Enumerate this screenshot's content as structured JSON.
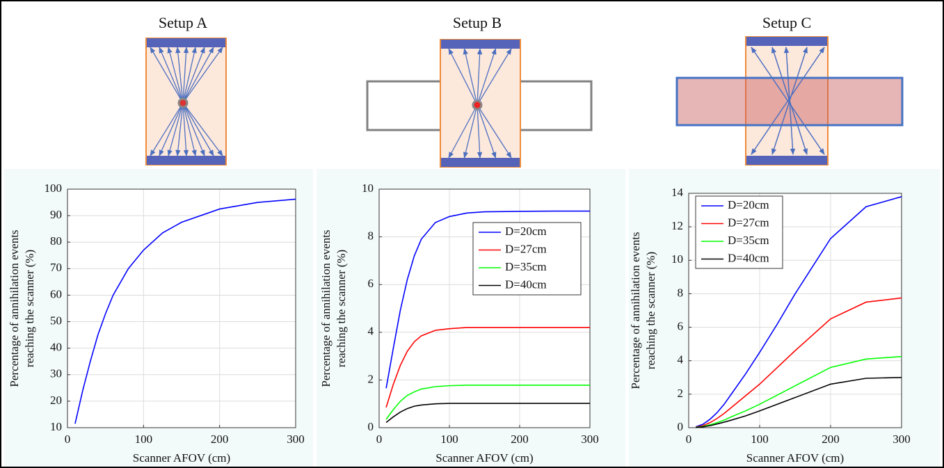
{
  "chart_data": [
    {
      "type": "line",
      "title": "Setup A",
      "xlabel": "Scanner AFOV (cm)",
      "ylabel": [
        "Percentage of annihilation events",
        "reaching the scanner (%)"
      ],
      "x": [
        10,
        20,
        30,
        40,
        50,
        60,
        80,
        100,
        125,
        150,
        200,
        250,
        300
      ],
      "series": [
        {
          "color": "#0000ff",
          "values": [
            11.5,
            24,
            35,
            45,
            53,
            60,
            70,
            77,
            83.5,
            87.5,
            92.5,
            95,
            96.2
          ]
        }
      ],
      "xlim": [
        0,
        300
      ],
      "xticks": [
        0,
        100,
        200,
        300
      ],
      "ylim": [
        10,
        100
      ],
      "yticks": [
        10,
        20,
        30,
        40,
        50,
        60,
        70,
        80,
        90,
        100
      ],
      "grid": true
    },
    {
      "type": "line",
      "title": "Setup B",
      "xlabel": "Scanner AFOV (cm)",
      "ylabel": [
        "Percentage of annihilation events",
        "reaching the scanner (%)"
      ],
      "x": [
        10,
        20,
        30,
        40,
        50,
        60,
        80,
        100,
        125,
        150,
        200,
        250,
        300
      ],
      "series": [
        {
          "name": "D=20cm",
          "color": "#0000ff",
          "values": [
            1.65,
            3.3,
            4.9,
            6.2,
            7.2,
            7.9,
            8.6,
            8.85,
            9.0,
            9.05,
            9.07,
            9.08,
            9.08
          ]
        },
        {
          "name": "D=27cm",
          "color": "#ff0000",
          "values": [
            0.85,
            1.8,
            2.6,
            3.2,
            3.6,
            3.85,
            4.08,
            4.15,
            4.2,
            4.2,
            4.2,
            4.2,
            4.2
          ]
        },
        {
          "name": "D=35cm",
          "color": "#00ff00",
          "values": [
            0.35,
            0.75,
            1.1,
            1.35,
            1.5,
            1.62,
            1.72,
            1.76,
            1.78,
            1.78,
            1.78,
            1.78,
            1.78
          ]
        },
        {
          "name": "D=40cm",
          "color": "#000000",
          "values": [
            0.22,
            0.45,
            0.65,
            0.8,
            0.9,
            0.95,
            1.0,
            1.02,
            1.02,
            1.02,
            1.02,
            1.02,
            1.02
          ]
        }
      ],
      "xlim": [
        0,
        300
      ],
      "xticks": [
        0,
        100,
        200,
        300
      ],
      "ylim": [
        0,
        10
      ],
      "yticks": [
        0,
        2,
        4,
        6,
        8,
        10
      ],
      "grid": true,
      "legend": "upper right"
    },
    {
      "type": "line",
      "title": "Setup C",
      "xlabel": "Scanner AFOV (cm)",
      "ylabel": [
        "Percentage of annihilation events",
        "reaching the scanner (%)"
      ],
      "x": [
        10,
        20,
        30,
        40,
        50,
        60,
        80,
        100,
        125,
        150,
        200,
        250,
        300
      ],
      "series": [
        {
          "name": "D=20cm",
          "color": "#0000ff",
          "values": [
            0.05,
            0.2,
            0.5,
            0.9,
            1.4,
            2.0,
            3.2,
            4.5,
            6.2,
            8.0,
            11.3,
            13.2,
            13.8
          ]
        },
        {
          "name": "D=27cm",
          "color": "#ff0000",
          "values": [
            0.03,
            0.12,
            0.3,
            0.55,
            0.85,
            1.2,
            1.9,
            2.6,
            3.6,
            4.6,
            6.5,
            7.5,
            7.75
          ]
        },
        {
          "name": "D=35cm",
          "color": "#00ff00",
          "values": [
            0.02,
            0.07,
            0.17,
            0.3,
            0.45,
            0.65,
            1.0,
            1.4,
            1.95,
            2.5,
            3.6,
            4.1,
            4.25
          ]
        },
        {
          "name": "D=40cm",
          "color": "#000000",
          "values": [
            0.01,
            0.05,
            0.12,
            0.22,
            0.33,
            0.45,
            0.7,
            1.0,
            1.4,
            1.8,
            2.6,
            2.95,
            3.0
          ]
        }
      ],
      "xlim": [
        0,
        300
      ],
      "xticks": [
        0,
        100,
        200,
        300
      ],
      "ylim": [
        0,
        14
      ],
      "yticks": [
        0,
        2,
        4,
        6,
        8,
        10,
        12,
        14
      ],
      "grid": true,
      "legend": "upper left"
    }
  ]
}
